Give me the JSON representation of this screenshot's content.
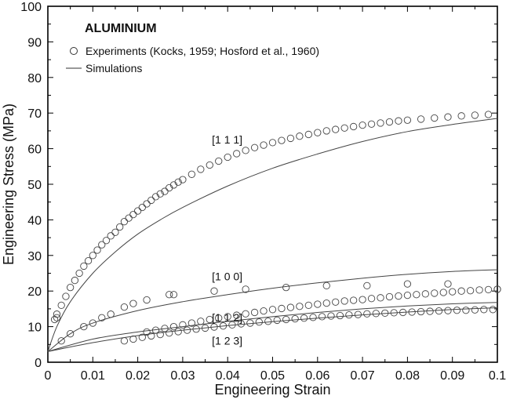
{
  "chart_data": {
    "type": "line+scatter",
    "title": "ALUMINIUM",
    "xlabel": "Engineering Strain",
    "ylabel": "Engineering Stress (MPa)",
    "xlim": [
      0,
      0.1
    ],
    "ylim": [
      0,
      100
    ],
    "xticks": [
      0,
      0.01,
      0.02,
      0.03,
      0.04,
      0.05,
      0.06,
      0.07,
      0.08,
      0.09,
      0.1
    ],
    "xtick_labels": [
      "0",
      "0.01",
      "0.02",
      "0.03",
      "0.04",
      "0.05",
      "0.06",
      "0.07",
      "0.08",
      "0.09",
      "0.1"
    ],
    "yticks": [
      0,
      10,
      20,
      30,
      40,
      50,
      60,
      70,
      80,
      90,
      100
    ],
    "ytick_labels": [
      "0",
      "10",
      "20",
      "30",
      "40",
      "50",
      "60",
      "70",
      "80",
      "90",
      "100"
    ],
    "grid": false,
    "legend_position": "top-left",
    "legend": [
      {
        "name": "Experiments (Kocks, 1959; Hosford et al., 1960)",
        "marker": "open-circle"
      },
      {
        "name": "Simulations",
        "marker": "line"
      }
    ],
    "annotations": [
      {
        "text": "[1 1 1]",
        "x": 0.0365,
        "y": 61.5
      },
      {
        "text": "[1 0 0]",
        "x": 0.0365,
        "y": 23.0
      },
      {
        "text": "[1 1 2]",
        "x": 0.0365,
        "y": 11.5
      },
      {
        "text": "[1 2 3]",
        "x": 0.0365,
        "y": 5.0
      }
    ],
    "simulation_series": [
      {
        "orientation": "[1 1 1]",
        "x": [
          0,
          0.002,
          0.005,
          0.01,
          0.015,
          0.02,
          0.025,
          0.03,
          0.04,
          0.05,
          0.06,
          0.07,
          0.08,
          0.09,
          0.1
        ],
        "y": [
          3.0,
          10.0,
          17.0,
          25.0,
          31.0,
          36.0,
          40.0,
          43.5,
          49.5,
          54.5,
          58.5,
          62.0,
          64.8,
          66.8,
          68.5
        ]
      },
      {
        "orientation": "[1 0 0]",
        "x": [
          0,
          0.005,
          0.01,
          0.02,
          0.03,
          0.04,
          0.05,
          0.06,
          0.07,
          0.08,
          0.09,
          0.1
        ],
        "y": [
          3.0,
          8.0,
          11.0,
          14.5,
          17.0,
          19.0,
          20.8,
          22.3,
          23.6,
          24.7,
          25.5,
          26.0
        ]
      },
      {
        "orientation": "[1 1 2]",
        "x": [
          0,
          0.01,
          0.02,
          0.03,
          0.04,
          0.05,
          0.06,
          0.07,
          0.08,
          0.09,
          0.1
        ],
        "y": [
          3.0,
          6.5,
          8.5,
          10.0,
          11.5,
          12.8,
          14.0,
          15.0,
          15.8,
          16.4,
          16.8
        ]
      },
      {
        "orientation": "[1 2 3]",
        "x": [
          0,
          0.01,
          0.02,
          0.03,
          0.04,
          0.05,
          0.06,
          0.07,
          0.08,
          0.09,
          0.1
        ],
        "y": [
          3.0,
          5.5,
          7.5,
          9.0,
          10.3,
          11.4,
          12.4,
          13.3,
          14.1,
          14.8,
          15.3
        ]
      }
    ],
    "experiment_series": [
      {
        "orientation": "[1 1 1]",
        "x": [
          0.0015,
          0.002,
          0.003,
          0.004,
          0.005,
          0.006,
          0.007,
          0.008,
          0.009,
          0.01,
          0.011,
          0.012,
          0.013,
          0.014,
          0.015,
          0.016,
          0.017,
          0.018,
          0.019,
          0.02,
          0.021,
          0.022,
          0.023,
          0.024,
          0.025,
          0.026,
          0.027,
          0.028,
          0.029,
          0.03,
          0.032,
          0.034,
          0.036,
          0.038,
          0.04,
          0.042,
          0.044,
          0.046,
          0.048,
          0.05,
          0.052,
          0.054,
          0.056,
          0.058,
          0.06,
          0.062,
          0.064,
          0.066,
          0.068,
          0.07,
          0.072,
          0.074,
          0.076,
          0.078,
          0.08,
          0.083,
          0.086,
          0.089,
          0.092,
          0.095,
          0.098
        ],
        "y": [
          12.0,
          13.5,
          16.0,
          18.5,
          21.0,
          23.0,
          25.0,
          27.0,
          28.5,
          30.0,
          31.5,
          33.0,
          34.2,
          35.5,
          36.5,
          38.0,
          39.5,
          40.5,
          41.5,
          42.5,
          43.5,
          44.5,
          45.5,
          46.5,
          47.3,
          48.0,
          49.0,
          49.8,
          50.6,
          51.3,
          52.8,
          54.2,
          55.4,
          56.5,
          57.6,
          58.6,
          59.5,
          60.3,
          61.0,
          61.7,
          62.3,
          62.9,
          63.5,
          64.0,
          64.5,
          65.0,
          65.4,
          65.8,
          66.2,
          66.6,
          66.9,
          67.2,
          67.5,
          67.8,
          68.0,
          68.3,
          68.6,
          68.9,
          69.2,
          69.4,
          69.6
        ]
      },
      {
        "orientation": "[1 0 0]",
        "x": [
          0.002,
          0.003,
          0.005,
          0.008,
          0.01,
          0.012,
          0.014,
          0.017,
          0.019,
          0.022,
          0.027,
          0.028,
          0.037,
          0.044,
          0.053,
          0.062,
          0.071,
          0.08,
          0.089,
          0.1
        ],
        "y": [
          12.5,
          6.0,
          8.0,
          10.0,
          11.0,
          12.5,
          13.5,
          15.5,
          16.5,
          17.5,
          19.0,
          19.0,
          20.0,
          20.5,
          21.0,
          21.5,
          21.5,
          22.0,
          22.0,
          20.5
        ]
      },
      {
        "orientation": "[1 1 2]",
        "x": [
          0.022,
          0.024,
          0.026,
          0.028,
          0.03,
          0.032,
          0.034,
          0.036,
          0.038,
          0.04,
          0.042,
          0.044,
          0.046,
          0.048,
          0.05,
          0.052,
          0.054,
          0.056,
          0.058,
          0.06,
          0.062,
          0.064,
          0.066,
          0.068,
          0.07,
          0.072,
          0.074,
          0.076,
          0.078,
          0.08,
          0.082,
          0.084,
          0.086,
          0.088,
          0.09,
          0.092,
          0.094,
          0.096,
          0.098,
          0.1
        ],
        "y": [
          8.5,
          9.0,
          9.5,
          10.0,
          10.5,
          11.0,
          11.5,
          12.0,
          12.4,
          12.8,
          13.2,
          13.6,
          14.0,
          14.4,
          14.8,
          15.1,
          15.4,
          15.7,
          16.0,
          16.3,
          16.6,
          16.9,
          17.2,
          17.4,
          17.6,
          17.9,
          18.1,
          18.4,
          18.6,
          18.8,
          19.0,
          19.2,
          19.4,
          19.6,
          19.8,
          20.0,
          20.1,
          20.3,
          20.4,
          20.5
        ]
      },
      {
        "orientation": "[1 2 3]",
        "x": [
          0.017,
          0.019,
          0.021,
          0.023,
          0.025,
          0.027,
          0.029,
          0.031,
          0.033,
          0.035,
          0.037,
          0.039,
          0.041,
          0.043,
          0.045,
          0.047,
          0.049,
          0.051,
          0.053,
          0.055,
          0.057,
          0.059,
          0.061,
          0.063,
          0.065,
          0.067,
          0.069,
          0.071,
          0.073,
          0.075,
          0.077,
          0.079,
          0.081,
          0.083,
          0.085,
          0.087,
          0.089,
          0.091,
          0.093,
          0.095,
          0.097,
          0.099
        ],
        "y": [
          6.0,
          6.5,
          7.0,
          7.4,
          7.8,
          8.2,
          8.6,
          9.0,
          9.3,
          9.6,
          9.9,
          10.2,
          10.5,
          10.8,
          11.0,
          11.3,
          11.5,
          11.8,
          12.0,
          12.2,
          12.4,
          12.6,
          12.8,
          13.0,
          13.1,
          13.3,
          13.4,
          13.6,
          13.7,
          13.8,
          13.9,
          14.0,
          14.1,
          14.2,
          14.3,
          14.4,
          14.5,
          14.6,
          14.6,
          14.7,
          14.8,
          14.8
        ]
      }
    ]
  }
}
